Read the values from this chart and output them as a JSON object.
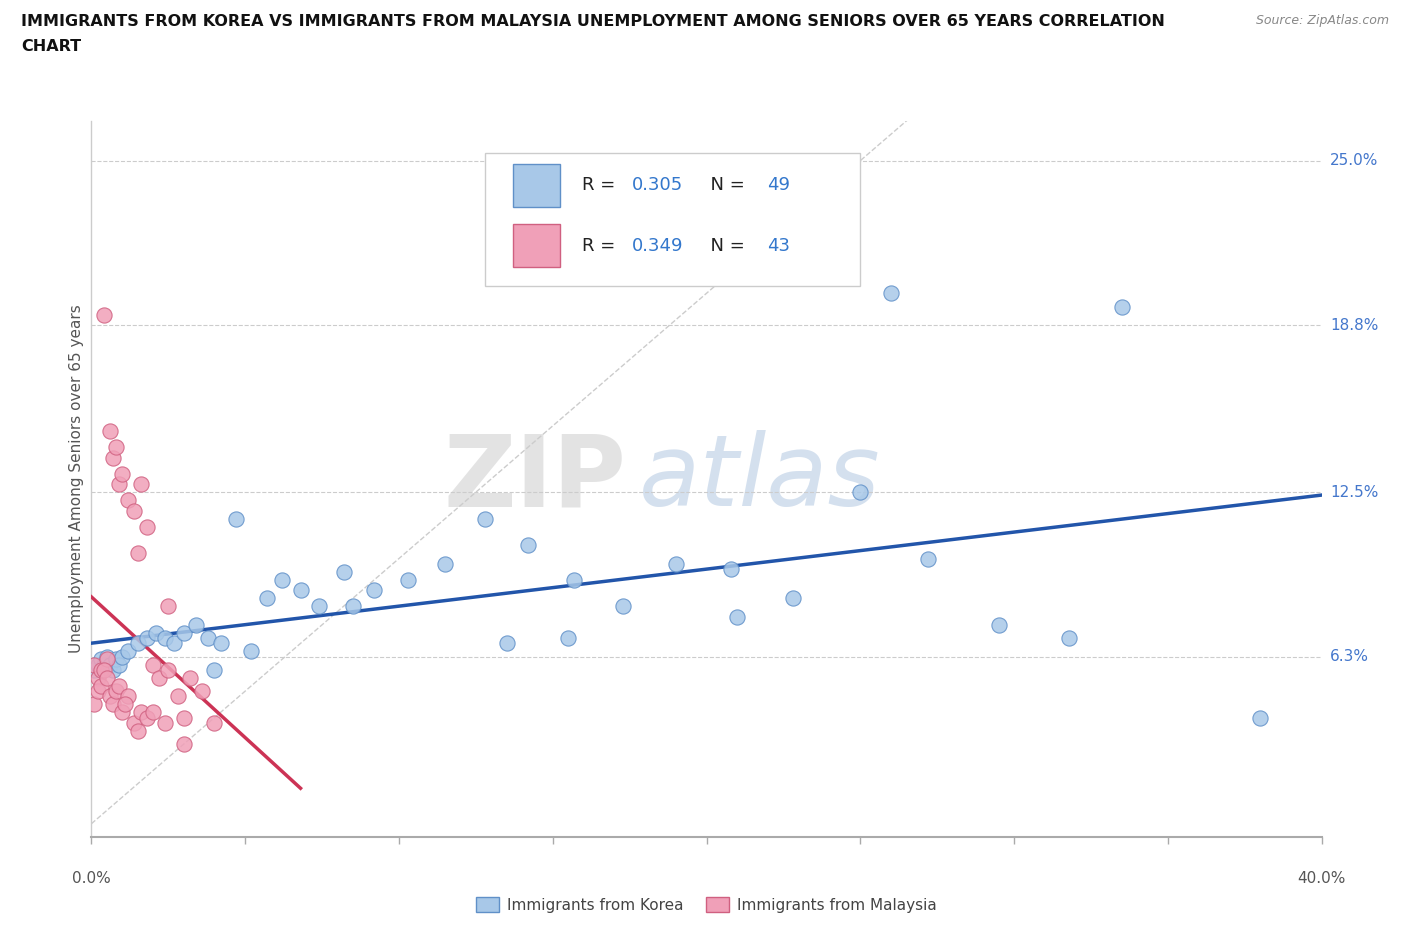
{
  "title_line1": "IMMIGRANTS FROM KOREA VS IMMIGRANTS FROM MALAYSIA UNEMPLOYMENT AMONG SENIORS OVER 65 YEARS CORRELATION",
  "title_line2": "CHART",
  "source": "Source: ZipAtlas.com",
  "ylabel": "Unemployment Among Seniors over 65 years",
  "xmin": 0.0,
  "xmax": 0.4,
  "ymin": -0.005,
  "ymax": 0.265,
  "ytick_vals": [
    0.063,
    0.125,
    0.188,
    0.25
  ],
  "ytick_labels": [
    "6.3%",
    "12.5%",
    "18.8%",
    "25.0%"
  ],
  "xtick_minor_positions": [
    0.0,
    0.05,
    0.1,
    0.15,
    0.2,
    0.25,
    0.3,
    0.35,
    0.4
  ],
  "xtick_label_left": "0.0%",
  "xtick_label_right": "40.0%",
  "korea_color": "#a8c8e8",
  "malaysia_color": "#f0a0b8",
  "korea_edge": "#6090c8",
  "malaysia_edge": "#d06080",
  "trend_korea_color": "#2255aa",
  "trend_malaysia_color": "#cc3355",
  "R_korea": 0.305,
  "N_korea": 49,
  "R_malaysia": 0.349,
  "N_malaysia": 43,
  "watermark_zip": "ZIP",
  "watermark_atlas": "atlas",
  "legend_label_korea": "Immigrants from Korea",
  "legend_label_malaysia": "Immigrants from Malaysia",
  "korea_x": [
    0.001,
    0.002,
    0.003,
    0.004,
    0.005,
    0.006,
    0.007,
    0.008,
    0.009,
    0.01,
    0.012,
    0.015,
    0.018,
    0.021,
    0.024,
    0.027,
    0.03,
    0.034,
    0.038,
    0.042,
    0.047,
    0.052,
    0.057,
    0.062,
    0.068,
    0.074,
    0.082,
    0.092,
    0.103,
    0.115,
    0.128,
    0.142,
    0.157,
    0.173,
    0.19,
    0.208,
    0.228,
    0.25,
    0.272,
    0.295,
    0.318,
    0.155,
    0.21,
    0.26,
    0.335,
    0.38,
    0.04,
    0.085,
    0.135
  ],
  "korea_y": [
    0.058,
    0.06,
    0.062,
    0.06,
    0.063,
    0.06,
    0.058,
    0.062,
    0.06,
    0.063,
    0.065,
    0.068,
    0.07,
    0.072,
    0.07,
    0.068,
    0.072,
    0.075,
    0.07,
    0.068,
    0.115,
    0.065,
    0.085,
    0.092,
    0.088,
    0.082,
    0.095,
    0.088,
    0.092,
    0.098,
    0.115,
    0.105,
    0.092,
    0.082,
    0.098,
    0.096,
    0.085,
    0.125,
    0.1,
    0.075,
    0.07,
    0.07,
    0.078,
    0.2,
    0.195,
    0.04,
    0.058,
    0.082,
    0.068
  ],
  "malaysia_x": [
    0.001,
    0.002,
    0.003,
    0.004,
    0.005,
    0.006,
    0.007,
    0.008,
    0.009,
    0.01,
    0.012,
    0.014,
    0.016,
    0.018,
    0.02,
    0.022,
    0.025,
    0.028,
    0.032,
    0.036,
    0.001,
    0.002,
    0.003,
    0.004,
    0.005,
    0.006,
    0.007,
    0.008,
    0.009,
    0.01,
    0.012,
    0.014,
    0.016,
    0.018,
    0.02,
    0.015,
    0.011,
    0.024,
    0.03,
    0.04,
    0.025,
    0.03,
    0.015
  ],
  "malaysia_y": [
    0.06,
    0.055,
    0.058,
    0.192,
    0.062,
    0.148,
    0.138,
    0.142,
    0.128,
    0.132,
    0.122,
    0.118,
    0.128,
    0.112,
    0.06,
    0.055,
    0.058,
    0.048,
    0.055,
    0.05,
    0.045,
    0.05,
    0.052,
    0.058,
    0.055,
    0.048,
    0.045,
    0.05,
    0.052,
    0.042,
    0.048,
    0.038,
    0.042,
    0.04,
    0.042,
    0.035,
    0.045,
    0.038,
    0.04,
    0.038,
    0.082,
    0.03,
    0.102
  ]
}
